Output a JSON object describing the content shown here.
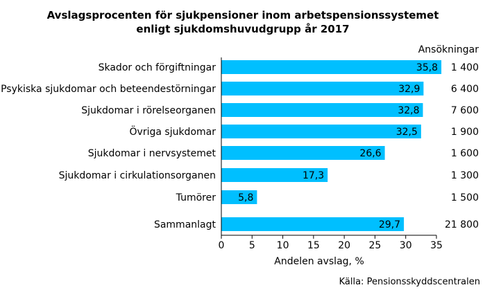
{
  "chart_data": {
    "type": "bar",
    "orientation": "horizontal",
    "title_line1": "Avslagsprocenten för sjukpensioner inom arbetspensionssystemet",
    "title_line2": "enligt sjukdomshuvudgrupp år 2017",
    "categories": [
      "Skador och förgiftningar",
      "Psykiska sjukdomar och beteendestörningar",
      "Sjukdomar i rörelseorganen",
      "Övriga sjukdomar",
      "Sjukdomar i nervsystemet",
      "Sjukdomar i cirkulationsorganen",
      "Tumörer",
      "Sammanlagt"
    ],
    "values": [
      35.8,
      32.9,
      32.8,
      32.5,
      26.6,
      17.3,
      5.8,
      29.7
    ],
    "value_labels": [
      "35,8",
      "32,9",
      "32,8",
      "32,5",
      "26,6",
      "17,3",
      "5,8",
      "29,7"
    ],
    "applications_header": "Ansökningar",
    "applications": [
      "1 400",
      "6 400",
      "7 600",
      "1 900",
      "1 600",
      "1 300",
      "1 500",
      "21 800"
    ],
    "xlabel": "Andelen avslag, %",
    "xlim": [
      0,
      35
    ],
    "xticks": [
      0,
      5,
      10,
      15,
      20,
      25,
      30,
      35
    ],
    "source": "Källa: Pensionsskyddscentralen",
    "bar_color": "#00BFFF",
    "grid": false
  }
}
